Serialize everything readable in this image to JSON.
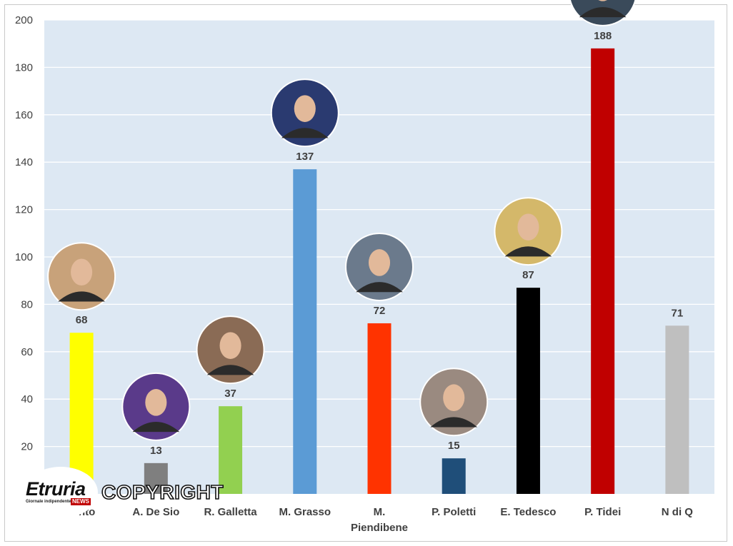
{
  "chart_data": {
    "type": "bar",
    "categories": [
      "…nto",
      "A. De Sio",
      "R. Galletta",
      "M. Grasso",
      "M. Piendibene",
      "P. Poletti",
      "E. Tedesco",
      "P. Tidei",
      "N di Q"
    ],
    "category_lines": [
      [
        "…nto"
      ],
      [
        "A. De Sio"
      ],
      [
        "R. Galletta"
      ],
      [
        "M. Grasso"
      ],
      [
        "M.",
        "Piendibene"
      ],
      [
        "P. Poletti"
      ],
      [
        "E. Tedesco"
      ],
      [
        "P. Tidei"
      ],
      [
        "N di Q"
      ]
    ],
    "values": [
      68,
      13,
      37,
      137,
      72,
      15,
      87,
      188,
      71
    ],
    "colors": [
      "#ffff00",
      "#7f7f7f",
      "#92d050",
      "#5b9bd5",
      "#ff3300",
      "#1f4e79",
      "#000000",
      "#c00000",
      "#bfbfbf"
    ],
    "portrait_colors": [
      "#c8a27a",
      "#5a3a8a",
      "#8a6b55",
      "#2a3a70",
      "#6b7a8c",
      "#9a8a80",
      "#d4b86a",
      "#3a4a5a"
    ],
    "ylim": [
      0,
      200
    ],
    "yticks": [
      20,
      40,
      60,
      80,
      100,
      120,
      140,
      160,
      180,
      200
    ],
    "grid": true,
    "title": "",
    "xlabel": "",
    "ylabel": "",
    "background": "#dde8f3",
    "gridline_color": "#ffffff"
  },
  "watermark": {
    "brand": "Etruria",
    "badge": "NEWS",
    "tagline": "Giornale indipendente",
    "copyright": "COPYRIGHT"
  }
}
